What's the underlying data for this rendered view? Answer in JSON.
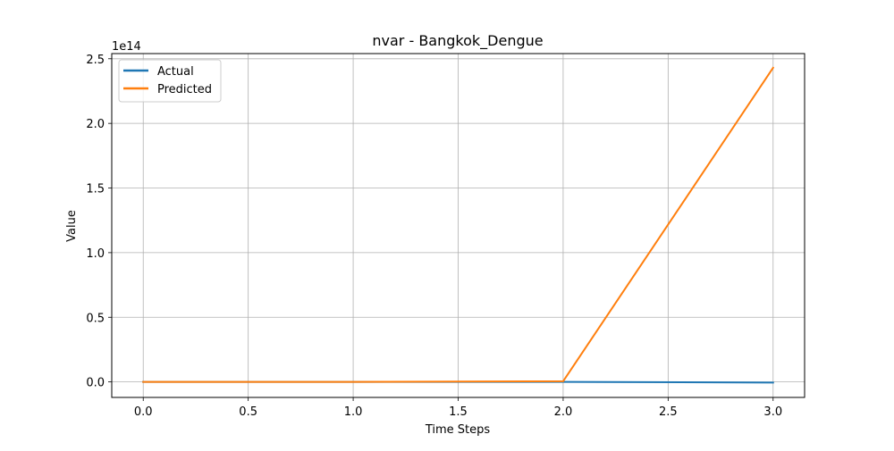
{
  "chart_data": {
    "type": "line",
    "title": "nvar - Bangkok_Dengue",
    "xlabel": "Time Steps",
    "ylabel": "Value",
    "y_offset_text": "1e14",
    "xlim": [
      -0.15,
      3.15
    ],
    "ylim": [
      -0.12,
      2.54
    ],
    "x_ticks": [
      0.0,
      0.5,
      1.0,
      1.5,
      2.0,
      2.5,
      3.0
    ],
    "x_tick_labels": [
      "0.0",
      "0.5",
      "1.0",
      "1.5",
      "2.0",
      "2.5",
      "3.0"
    ],
    "y_ticks": [
      0.0,
      0.5,
      1.0,
      1.5,
      2.0,
      2.5
    ],
    "y_tick_labels": [
      "0.0",
      "0.5",
      "1.0",
      "1.5",
      "2.0",
      "2.5"
    ],
    "grid": true,
    "legend_position": "top-left",
    "x": [
      0,
      1,
      2,
      3
    ],
    "series": [
      {
        "name": "Actual",
        "color": "#1f77b4",
        "values": [
          0.0,
          0.0,
          0.0,
          -0.005
        ]
      },
      {
        "name": "Predicted",
        "color": "#ff7f0e",
        "values": [
          0.0,
          0.0,
          0.005,
          2.43
        ]
      }
    ]
  }
}
